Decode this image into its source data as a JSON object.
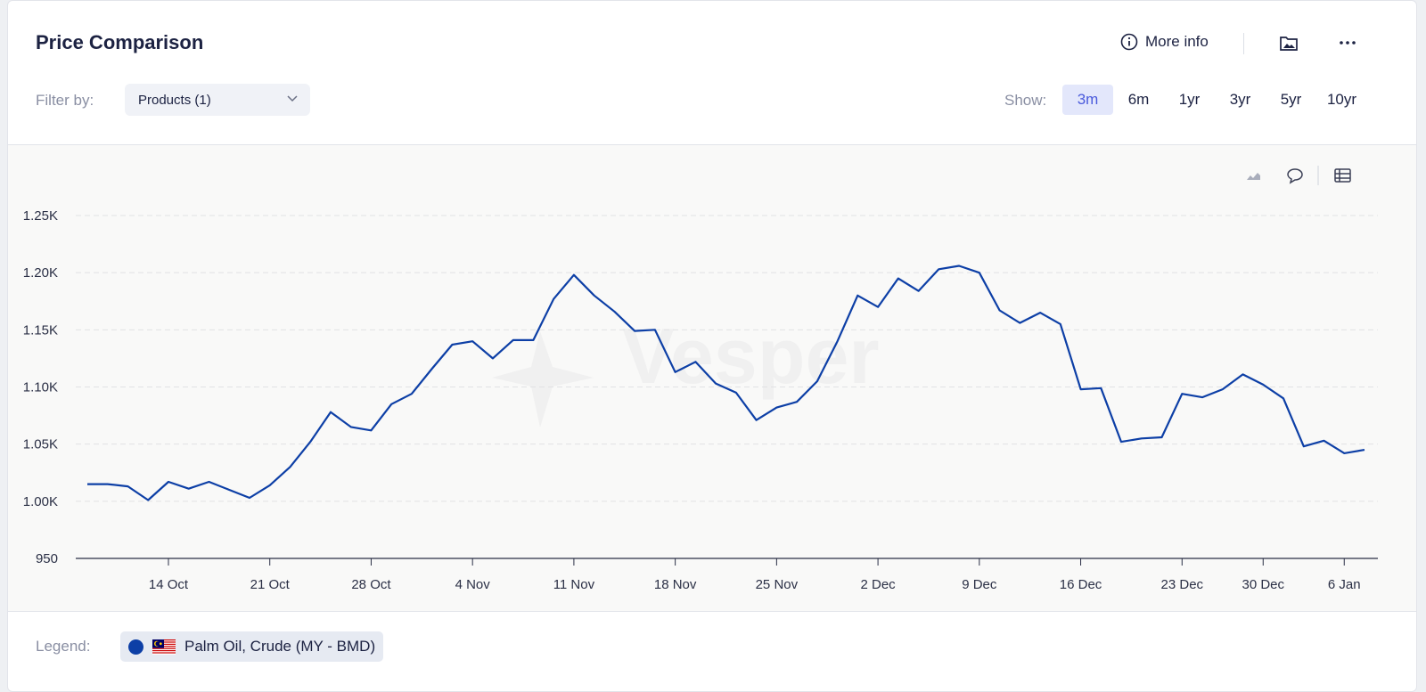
{
  "header": {
    "title": "Price Comparison",
    "more_info": "More info"
  },
  "filter": {
    "label": "Filter by:",
    "dropdown": "Products (1)"
  },
  "show": {
    "label": "Show:",
    "ranges": [
      "3m",
      "6m",
      "1yr",
      "3yr",
      "5yr",
      "10yr"
    ]
  },
  "watermark": "Vesper",
  "legend_label": "Legend:",
  "chart_data": {
    "type": "line",
    "categories": [
      null,
      null,
      null,
      null,
      "14 Oct",
      null,
      null,
      null,
      null,
      "21 Oct",
      null,
      null,
      null,
      null,
      "28 Oct",
      null,
      null,
      null,
      null,
      "4 Nov",
      null,
      null,
      null,
      null,
      "11 Nov",
      null,
      null,
      null,
      null,
      "18 Nov",
      null,
      null,
      null,
      null,
      "25 Nov",
      null,
      null,
      null,
      null,
      "2 Dec",
      null,
      null,
      null,
      null,
      "9 Dec",
      null,
      null,
      null,
      null,
      "16 Dec",
      null,
      null,
      null,
      null,
      "23 Dec",
      null,
      null,
      null,
      "30 Dec",
      null,
      null,
      null,
      "6 Jan",
      null
    ],
    "series": [
      {
        "name": "Palm Oil, Crude (MY - BMD)",
        "color": "#0d3fa6",
        "values": [
          1015,
          1015,
          1013,
          1001,
          1017,
          1011,
          1017,
          1010,
          1003,
          1014,
          1030,
          1052,
          1078,
          1065,
          1062,
          1085,
          1094,
          1116,
          1137,
          1140,
          1125,
          1141,
          1141,
          1177,
          1198,
          1180,
          1166,
          1149,
          1150,
          1113,
          1122,
          1103,
          1095,
          1071,
          1082,
          1087,
          1105,
          1140,
          1180,
          1170,
          1195,
          1184,
          1203,
          1206,
          1200,
          1167,
          1156,
          1165,
          1155,
          1098,
          1099,
          1052,
          1055,
          1056,
          1094,
          1091,
          1098,
          1111,
          1102,
          1090,
          1048,
          1053,
          1042,
          1045
        ]
      }
    ],
    "ylim": [
      950,
      1250
    ],
    "yticks": [
      950,
      {
        "value": 1000,
        "label": "1.00K"
      },
      {
        "value": 1050,
        "label": "1.05K"
      },
      {
        "value": 1100,
        "label": "1.10K"
      },
      {
        "value": 1150,
        "label": "1.15K"
      },
      {
        "value": 1200,
        "label": "1.20K"
      },
      {
        "value": 1250,
        "label": "1.25K"
      }
    ],
    "grid": true
  }
}
